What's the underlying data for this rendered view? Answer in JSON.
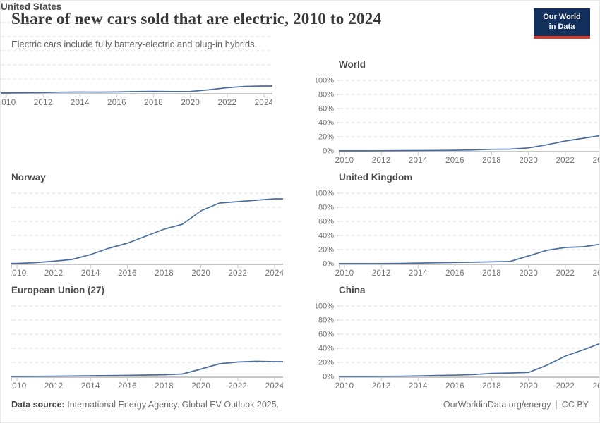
{
  "header": {
    "title": "Share of new cars sold that are electric, 2010 to 2024",
    "subtitle": "Electric cars include fully battery-electric and plug-in hybrids.",
    "logo": {
      "line1": "Our World",
      "line2": "in Data"
    }
  },
  "colors": {
    "line": "#4c6e9e",
    "grid": "#dedede",
    "axis": "#c8c8c8",
    "tick_text": "#6e6e6e",
    "logo_bg": "#12305b",
    "logo_bar": "#dc3a2a"
  },
  "chart_data": {
    "type": "line",
    "title": "Share of new cars sold that are electric, 2010 to 2024",
    "xlabel": "",
    "ylabel": "",
    "x": [
      2010,
      2011,
      2012,
      2013,
      2014,
      2015,
      2016,
      2017,
      2018,
      2019,
      2020,
      2021,
      2022,
      2023,
      2024
    ],
    "x_ticks": [
      2010,
      2012,
      2014,
      2016,
      2018,
      2020,
      2022,
      2024
    ],
    "x_tick_labels": [
      "2010",
      "2012",
      "2014",
      "2016",
      "2018",
      "2020",
      "2022",
      "2024"
    ],
    "ylim": [
      0,
      100
    ],
    "y_ticks": [
      0,
      20,
      40,
      60,
      80,
      100
    ],
    "y_tick_labels": [
      "0%",
      "20%",
      "40%",
      "60%",
      "80%",
      "100%"
    ],
    "grid": true,
    "legend": "none",
    "panels": [
      {
        "title": "World",
        "y_labels": true,
        "values": [
          0.1,
          0.1,
          0.2,
          0.4,
          0.5,
          0.7,
          0.9,
          1.3,
          2.3,
          2.5,
          4.2,
          8.7,
          14,
          18,
          22
        ]
      },
      {
        "title": "Norway",
        "y_labels": false,
        "values": [
          0.4,
          1.5,
          3.5,
          6,
          13,
          22,
          29,
          39,
          49,
          56,
          75,
          86,
          88,
          90,
          92
        ]
      },
      {
        "title": "United Kingdom",
        "y_labels": true,
        "values": [
          0.1,
          0.1,
          0.2,
          0.4,
          0.9,
          1.4,
          1.7,
          2.1,
          2.6,
          3.2,
          11,
          19,
          23,
          24,
          28
        ]
      },
      {
        "title": "European Union (27)",
        "y_labels": false,
        "values": [
          0.1,
          0.2,
          0.4,
          0.7,
          1.0,
          1.3,
          1.5,
          2.0,
          2.4,
          3.5,
          10.5,
          18,
          20.5,
          21.5,
          21
        ]
      },
      {
        "title": "China",
        "y_labels": true,
        "values": [
          0.1,
          0.1,
          0.2,
          0.3,
          0.8,
          1.4,
          1.8,
          2.7,
          4.4,
          4.9,
          5.7,
          16,
          29,
          38,
          48
        ]
      },
      {
        "title": "United States",
        "y_labels": false,
        "values": [
          0.1,
          0.3,
          0.7,
          1.3,
          1.5,
          1.4,
          1.6,
          2.1,
          2.4,
          2.1,
          2.3,
          4.6,
          7.6,
          9.5,
          10
        ]
      }
    ]
  },
  "footer": {
    "source_label": "Data source:",
    "source_text": "International Energy Agency. Global EV Outlook 2025.",
    "url": "OurWorldinData.org/energy",
    "separator": "|",
    "license": "CC BY"
  }
}
